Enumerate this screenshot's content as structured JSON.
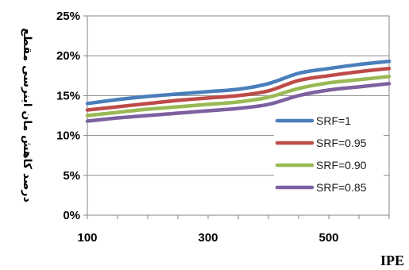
{
  "chart_data": {
    "type": "line",
    "title": "",
    "xlabel": "IPE",
    "ylabel": "درصد کاهش مان اینرسی مقطع",
    "x_ticks": [
      "100",
      "300",
      "500"
    ],
    "y_ticks": [
      "0%",
      "5%",
      "10%",
      "15%",
      "20%",
      "25%"
    ],
    "xlim": [
      100,
      600
    ],
    "ylim": [
      0,
      25
    ],
    "grid": "horizontal",
    "legend_position": "right",
    "x": [
      100,
      150,
      200,
      250,
      300,
      350,
      400,
      450,
      500,
      550,
      600
    ],
    "series": [
      {
        "name": "SRF=1",
        "color": "#4a7ebb",
        "values": [
          14.0,
          14.5,
          14.9,
          15.2,
          15.5,
          15.8,
          16.5,
          17.8,
          18.4,
          18.9,
          19.3
        ]
      },
      {
        "name": "SRF=0.95",
        "color": "#be4b48",
        "values": [
          13.2,
          13.6,
          14.0,
          14.4,
          14.7,
          15.0,
          15.6,
          16.9,
          17.5,
          18.0,
          18.4
        ]
      },
      {
        "name": "SRF=0.90",
        "color": "#98b954",
        "values": [
          12.5,
          12.9,
          13.3,
          13.6,
          13.9,
          14.2,
          14.8,
          15.9,
          16.6,
          17.0,
          17.4
        ]
      },
      {
        "name": "SRF=0.85",
        "color": "#7d60a0",
        "values": [
          11.8,
          12.2,
          12.5,
          12.8,
          13.1,
          13.4,
          13.9,
          15.0,
          15.7,
          16.1,
          16.5
        ]
      }
    ]
  }
}
